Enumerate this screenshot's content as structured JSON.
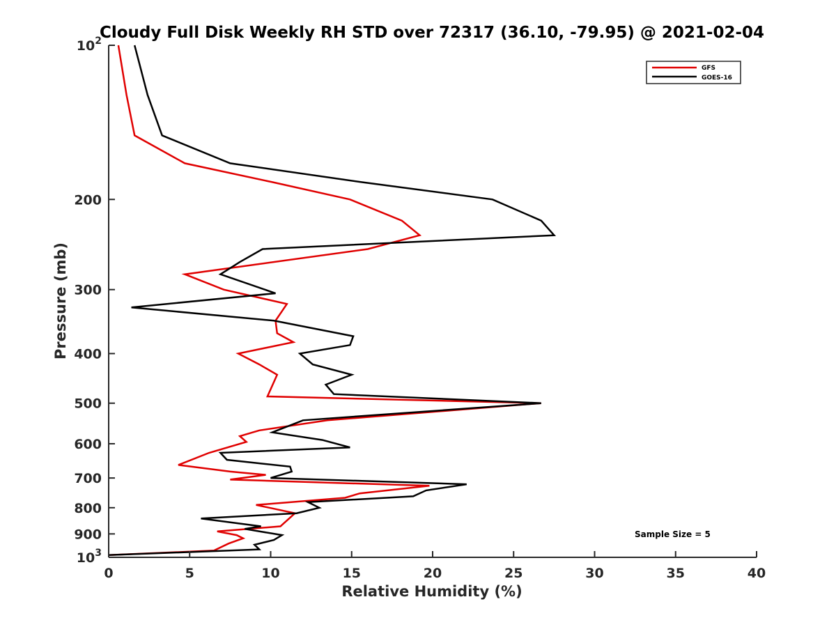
{
  "chart_data": {
    "type": "line",
    "title": "Cloudy Full Disk Weekly RH STD over 72317 (36.10, -79.95) @ 2021-02-04",
    "xlabel": "Relative Humidity (%)",
    "ylabel": "Pressure (mb)",
    "xlim": [
      0,
      40
    ],
    "ylim": [
      100,
      1000
    ],
    "y_scale": "log",
    "y_reversed": true,
    "x_ticks": [
      "0",
      "5",
      "10",
      "15",
      "20",
      "25",
      "30",
      "35",
      "40"
    ],
    "y_ticks": [
      {
        "value": 100,
        "label": "10",
        "sup": "2"
      },
      {
        "value": 200,
        "label": "200"
      },
      {
        "value": 300,
        "label": "300"
      },
      {
        "value": 400,
        "label": "400"
      },
      {
        "value": 500,
        "label": "500"
      },
      {
        "value": 600,
        "label": "600"
      },
      {
        "value": 700,
        "label": "700"
      },
      {
        "value": 800,
        "label": "800"
      },
      {
        "value": 900,
        "label": "900"
      },
      {
        "value": 1000,
        "label": "10",
        "sup": "3"
      }
    ],
    "grid": false,
    "legend_position": "top-right",
    "annotation": "Sample Size = 5",
    "series": [
      {
        "name": "GFS",
        "color": "#e00000",
        "points": [
          [
            0.6,
            100
          ],
          [
            1.1,
            125
          ],
          [
            1.6,
            150
          ],
          [
            4.7,
            170
          ],
          [
            10.1,
            185
          ],
          [
            14.9,
            200
          ],
          [
            18.1,
            220
          ],
          [
            19.2,
            235
          ],
          [
            16.0,
            250
          ],
          [
            4.7,
            280
          ],
          [
            7.1,
            300
          ],
          [
            11.0,
            320
          ],
          [
            10.3,
            345
          ],
          [
            10.4,
            365
          ],
          [
            11.4,
            380
          ],
          [
            8.0,
            400
          ],
          [
            9.3,
            420
          ],
          [
            10.4,
            440
          ],
          [
            9.8,
            485
          ],
          [
            26.7,
            500
          ],
          [
            13.5,
            540
          ],
          [
            9.3,
            565
          ],
          [
            8.1,
            580
          ],
          [
            8.5,
            595
          ],
          [
            6.2,
            625
          ],
          [
            4.3,
            660
          ],
          [
            7.5,
            680
          ],
          [
            9.7,
            690
          ],
          [
            7.5,
            705
          ],
          [
            19.8,
            725
          ],
          [
            15.5,
            750
          ],
          [
            14.6,
            765
          ],
          [
            9.1,
            790
          ],
          [
            11.5,
            820
          ],
          [
            10.6,
            870
          ],
          [
            6.7,
            890
          ],
          [
            7.9,
            905
          ],
          [
            8.3,
            918
          ],
          [
            7.4,
            940
          ],
          [
            6.5,
            970
          ],
          [
            0.0,
            990
          ]
        ]
      },
      {
        "name": "GOES-16",
        "color": "#000000",
        "points": [
          [
            1.6,
            100
          ],
          [
            2.4,
            125
          ],
          [
            3.3,
            150
          ],
          [
            7.5,
            170
          ],
          [
            15.6,
            185
          ],
          [
            23.7,
            200
          ],
          [
            26.7,
            220
          ],
          [
            27.5,
            235
          ],
          [
            9.5,
            250
          ],
          [
            8.1,
            265
          ],
          [
            6.9,
            280
          ],
          [
            10.3,
            305
          ],
          [
            1.4,
            325
          ],
          [
            10.2,
            345
          ],
          [
            15.1,
            370
          ],
          [
            14.9,
            385
          ],
          [
            11.8,
            400
          ],
          [
            12.6,
            420
          ],
          [
            15.0,
            440
          ],
          [
            13.4,
            460
          ],
          [
            13.9,
            480
          ],
          [
            26.7,
            500
          ],
          [
            12.0,
            540
          ],
          [
            10.1,
            570
          ],
          [
            13.2,
            590
          ],
          [
            14.9,
            610
          ],
          [
            6.9,
            625
          ],
          [
            7.3,
            645
          ],
          [
            11.2,
            665
          ],
          [
            11.3,
            680
          ],
          [
            10.0,
            700
          ],
          [
            22.1,
            720
          ],
          [
            19.6,
            740
          ],
          [
            18.8,
            760
          ],
          [
            12.3,
            780
          ],
          [
            13.0,
            800
          ],
          [
            11.6,
            820
          ],
          [
            5.7,
            840
          ],
          [
            9.4,
            870
          ],
          [
            8.4,
            880
          ],
          [
            10.7,
            905
          ],
          [
            10.2,
            925
          ],
          [
            9.0,
            945
          ],
          [
            9.3,
            965
          ],
          [
            0.0,
            990
          ]
        ]
      }
    ]
  }
}
